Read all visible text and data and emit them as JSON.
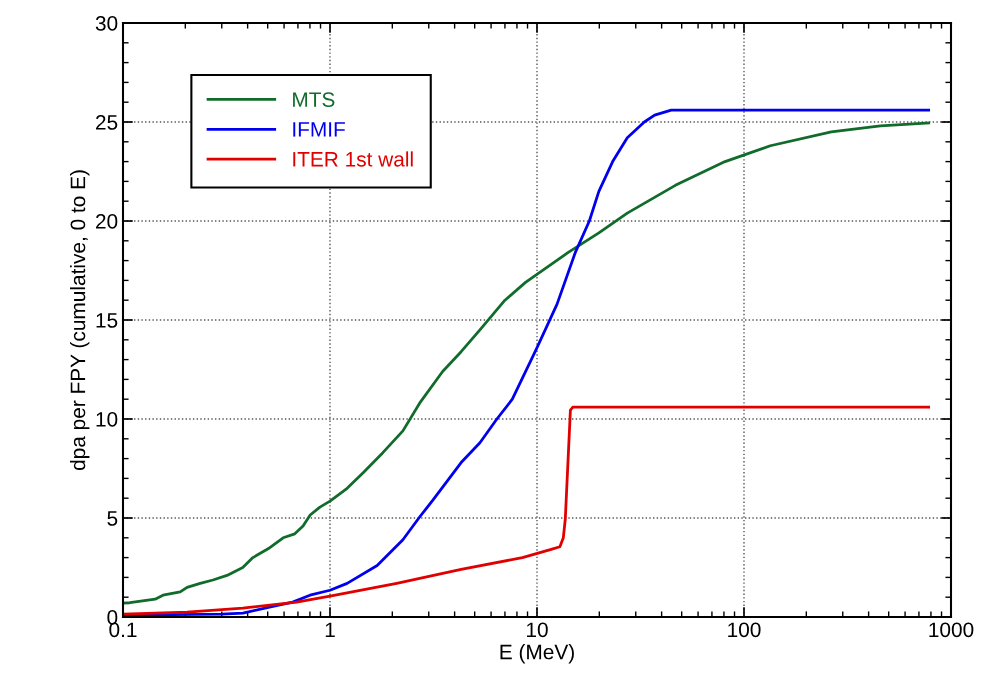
{
  "chart_data": {
    "type": "line",
    "xlabel": "E (MeV)",
    "ylabel": "dpa per FPY (cumulative, 0 to E)",
    "log": "x",
    "grid": true,
    "legend": "top left",
    "line_style": "solid",
    "marker": "none",
    "xlim": [
      0.1,
      1000
    ],
    "xticks": [
      0.1,
      1,
      10,
      100,
      1000
    ],
    "ylim": [
      0,
      30
    ],
    "yticks": [
      0,
      5,
      10,
      15,
      20,
      25,
      30
    ],
    "series": [
      {
        "name": "MTS",
        "color": "#116b2b",
        "x": [
          0.1,
          0.108,
          0.143,
          0.156,
          0.189,
          0.204,
          0.236,
          0.272,
          0.318,
          0.379,
          0.424,
          0.512,
          0.594,
          0.676,
          0.741,
          0.802,
          0.894,
          1.0,
          1.21,
          1.45,
          1.8,
          2.25,
          2.71,
          3.5,
          4.3,
          5.3,
          7.0,
          8.8,
          14.1,
          19.9,
          27.3,
          46.6,
          81,
          134,
          264,
          456,
          780
        ],
        "values": [
          0.7,
          0.72,
          0.9,
          1.1,
          1.27,
          1.5,
          1.7,
          1.87,
          2.1,
          2.5,
          3.0,
          3.5,
          4.0,
          4.2,
          4.6,
          5.15,
          5.55,
          5.85,
          6.5,
          7.3,
          8.3,
          9.4,
          10.8,
          12.4,
          13.4,
          14.5,
          16.0,
          16.9,
          18.4,
          19.4,
          20.4,
          21.8,
          23.0,
          23.8,
          24.5,
          24.8,
          24.95
        ]
      },
      {
        "name": "IFMIF",
        "color": "#0000ee",
        "x": [
          0.1,
          0.3,
          0.38,
          0.51,
          0.66,
          0.8,
          1.0,
          1.21,
          1.69,
          2.25,
          2.71,
          3.14,
          4.3,
          5.3,
          6.4,
          7.6,
          9.9,
          12.5,
          15.3,
          17.9,
          19.9,
          23.2,
          27.3,
          33,
          37,
          44.5,
          780
        ],
        "values": [
          0.1,
          0.15,
          0.2,
          0.5,
          0.75,
          1.1,
          1.35,
          1.7,
          2.6,
          3.9,
          5.05,
          5.9,
          7.8,
          8.8,
          10.0,
          11.0,
          13.5,
          15.8,
          18.4,
          20.0,
          21.5,
          23.0,
          24.2,
          25.0,
          25.35,
          25.6,
          25.6
        ]
      },
      {
        "name": "ITER 1st wall",
        "color": "#e00000",
        "x": [
          0.1,
          0.204,
          0.379,
          0.69,
          1.0,
          2.1,
          4.3,
          8.5,
          11.6,
          12.9,
          13.4,
          13.7,
          14.5,
          14.9,
          780
        ],
        "values": [
          0.15,
          0.25,
          0.45,
          0.75,
          1.05,
          1.7,
          2.4,
          3.0,
          3.4,
          3.55,
          4.0,
          4.95,
          10.45,
          10.6,
          10.6
        ]
      }
    ]
  }
}
